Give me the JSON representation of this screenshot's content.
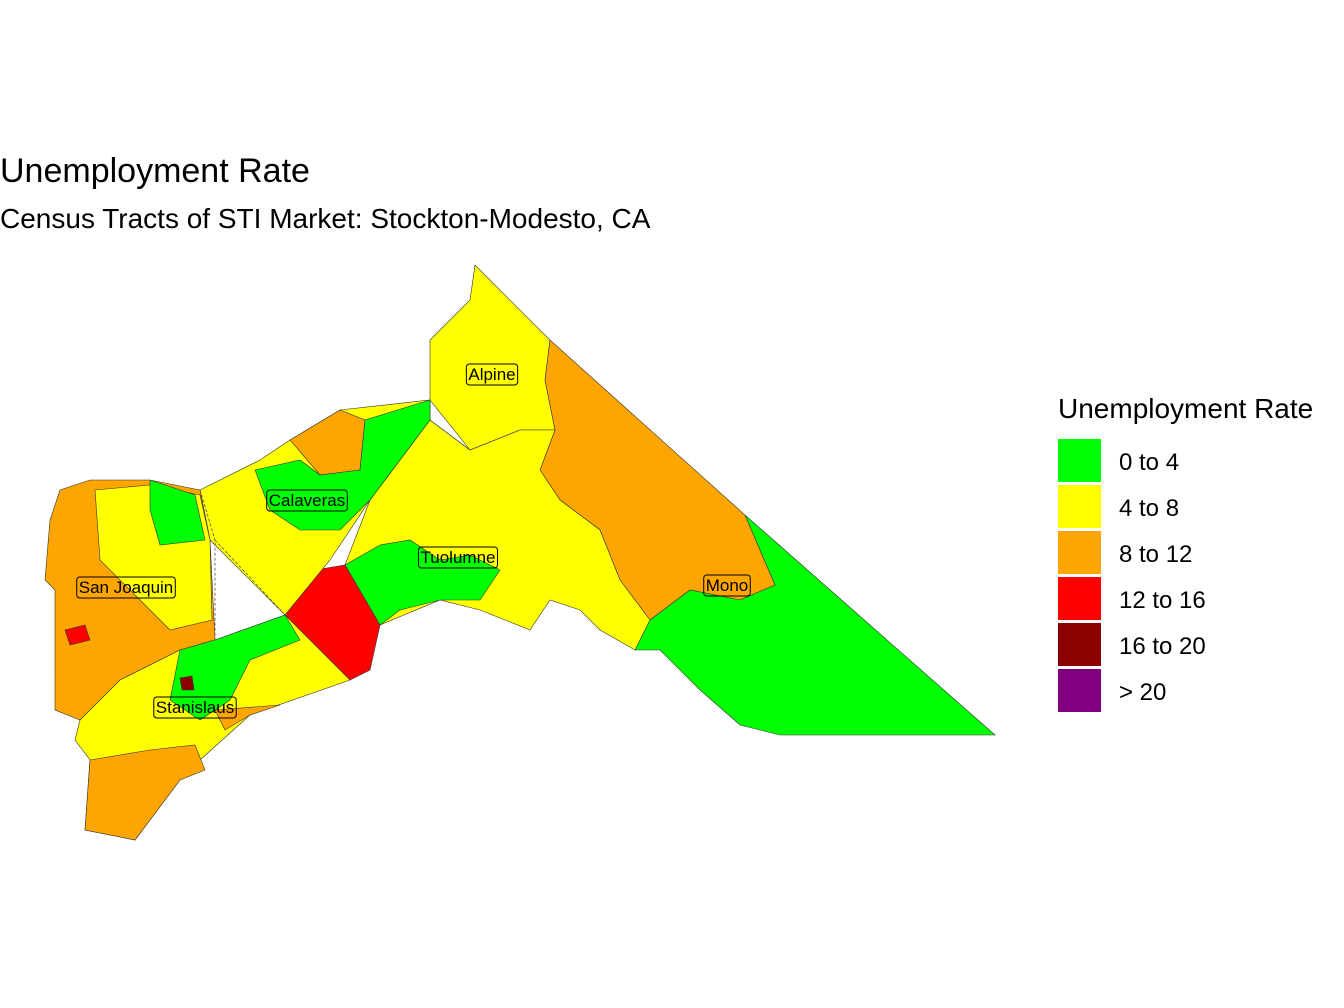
{
  "title": "Unemployment Rate",
  "subtitle": "Census Tracts of STI Market: Stockton-Modesto, CA",
  "legend": {
    "title": "Unemployment Rate",
    "items": [
      {
        "label": "0 to 4",
        "color": "#00ff00"
      },
      {
        "label": "4 to 8",
        "color": "#ffff00"
      },
      {
        "label": "8 to 12",
        "color": "#ffa500"
      },
      {
        "label": "12 to 16",
        "color": "#ff0000"
      },
      {
        "label": "16 to 20",
        "color": "#8b0000"
      },
      {
        "label": "> 20",
        "color": "#800080"
      }
    ]
  },
  "counties": [
    {
      "label": "Alpine"
    },
    {
      "label": "Calaveras"
    },
    {
      "label": "Tuolumne"
    },
    {
      "label": "San Joaquin"
    },
    {
      "label": "Mono"
    },
    {
      "label": "Stanislaus"
    }
  ]
}
